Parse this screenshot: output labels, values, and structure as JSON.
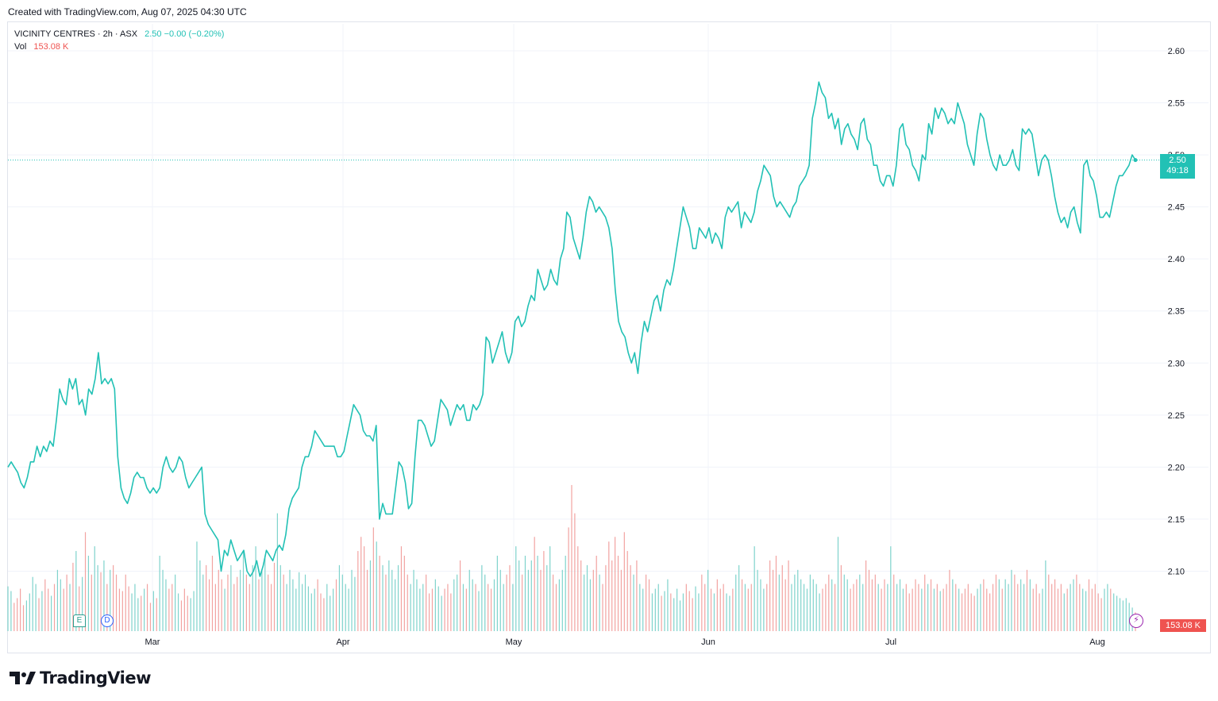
{
  "header": {
    "created": "Created with TradingView.com, Aug 07, 2025 04:30 UTC"
  },
  "legend": {
    "symbol": "VICINITY CENTRES · 2h · ASX",
    "price_text": "2.50 −0.00 (−0.20%)",
    "vol_label": "Vol",
    "vol_value": "153.08 K"
  },
  "price_tag": {
    "price": "2.50",
    "countdown": "49:18"
  },
  "vol_tag": "153.08 K",
  "markers": {
    "earnings": "E",
    "dividend": "D",
    "bolt": "⚡"
  },
  "brand": {
    "name": "TradingView"
  },
  "colors": {
    "line": "#22c1b5",
    "vol_up": "#7fd3cc",
    "vol_down": "#f2a3a1",
    "grid": "#f0f3fa"
  },
  "chart_data": {
    "type": "line",
    "ylim": [
      2.05,
      2.625
    ],
    "y_ticks": [
      "2.60",
      "2.55",
      "2.50",
      "2.45",
      "2.40",
      "2.35",
      "2.30",
      "2.25",
      "2.20",
      "2.15",
      "2.10"
    ],
    "x_ticks": [
      "Mar",
      "Apr",
      "May",
      "Jun",
      "Jul",
      "Aug"
    ],
    "current_price": 2.495,
    "series": [
      {
        "values": [
          2.2,
          2.205,
          2.2,
          2.195,
          2.185,
          2.18,
          2.19,
          2.205,
          2.205,
          2.22,
          2.21,
          2.22,
          2.215,
          2.225,
          2.22,
          2.245,
          2.275,
          2.265,
          2.26,
          2.285,
          2.275,
          2.285,
          2.26,
          2.265,
          2.25,
          2.275,
          2.27,
          2.285,
          2.31,
          2.28,
          2.285,
          2.28,
          2.285,
          2.275,
          2.21,
          2.18,
          2.17,
          2.165,
          2.175,
          2.19,
          2.195,
          2.19,
          2.19,
          2.18,
          2.175,
          2.18,
          2.175,
          2.18,
          2.2,
          2.21,
          2.2,
          2.195,
          2.2,
          2.21,
          2.205,
          2.19,
          2.18,
          2.185,
          2.19,
          2.195,
          2.2,
          2.155,
          2.145,
          2.14,
          2.135,
          2.13,
          2.1,
          2.12,
          2.115,
          2.13,
          2.12,
          2.11,
          2.115,
          2.12,
          2.1,
          2.095,
          2.1,
          2.11,
          2.095,
          2.105,
          2.12,
          2.115,
          2.11,
          2.12,
          2.125,
          2.12,
          2.135,
          2.16,
          2.17,
          2.175,
          2.18,
          2.2,
          2.21,
          2.21,
          2.22,
          2.235,
          2.23,
          2.225,
          2.22,
          2.22,
          2.22,
          2.22,
          2.21,
          2.21,
          2.215,
          2.23,
          2.245,
          2.26,
          2.255,
          2.25,
          2.235,
          2.23,
          2.23,
          2.225,
          2.24,
          2.15,
          2.165,
          2.155,
          2.155,
          2.155,
          2.18,
          2.205,
          2.2,
          2.185,
          2.16,
          2.165,
          2.21,
          2.245,
          2.245,
          2.24,
          2.23,
          2.22,
          2.225,
          2.245,
          2.265,
          2.26,
          2.255,
          2.24,
          2.25,
          2.26,
          2.255,
          2.26,
          2.245,
          2.245,
          2.26,
          2.255,
          2.26,
          2.27,
          2.325,
          2.32,
          2.3,
          2.31,
          2.32,
          2.33,
          2.31,
          2.3,
          2.31,
          2.34,
          2.345,
          2.335,
          2.34,
          2.355,
          2.365,
          2.36,
          2.39,
          2.38,
          2.37,
          2.375,
          2.39,
          2.38,
          2.375,
          2.4,
          2.41,
          2.445,
          2.44,
          2.42,
          2.41,
          2.4,
          2.42,
          2.445,
          2.46,
          2.455,
          2.445,
          2.45,
          2.445,
          2.44,
          2.43,
          2.41,
          2.37,
          2.34,
          2.33,
          2.325,
          2.31,
          2.3,
          2.31,
          2.29,
          2.32,
          2.34,
          2.33,
          2.345,
          2.36,
          2.365,
          2.35,
          2.37,
          2.38,
          2.375,
          2.39,
          2.41,
          2.43,
          2.45,
          2.44,
          2.43,
          2.41,
          2.41,
          2.43,
          2.425,
          2.42,
          2.43,
          2.415,
          2.425,
          2.42,
          2.41,
          2.44,
          2.45,
          2.445,
          2.45,
          2.455,
          2.43,
          2.445,
          2.44,
          2.435,
          2.445,
          2.465,
          2.475,
          2.49,
          2.485,
          2.48,
          2.46,
          2.45,
          2.455,
          2.45,
          2.445,
          2.44,
          2.45,
          2.455,
          2.47,
          2.475,
          2.48,
          2.49,
          2.535,
          2.55,
          2.57,
          2.56,
          2.555,
          2.535,
          2.54,
          2.525,
          2.535,
          2.51,
          2.525,
          2.53,
          2.52,
          2.515,
          2.505,
          2.53,
          2.535,
          2.515,
          2.51,
          2.49,
          2.49,
          2.475,
          2.47,
          2.48,
          2.48,
          2.47,
          2.49,
          2.525,
          2.53,
          2.51,
          2.505,
          2.49,
          2.485,
          2.475,
          2.5,
          2.495,
          2.53,
          2.52,
          2.545,
          2.535,
          2.545,
          2.54,
          2.53,
          2.535,
          2.53,
          2.55,
          2.54,
          2.53,
          2.51,
          2.5,
          2.49,
          2.52,
          2.54,
          2.535,
          2.515,
          2.5,
          2.49,
          2.485,
          2.5,
          2.49,
          2.49,
          2.495,
          2.505,
          2.49,
          2.485,
          2.525,
          2.52,
          2.525,
          2.52,
          2.5,
          2.48,
          2.495,
          2.5,
          2.495,
          2.48,
          2.46,
          2.445,
          2.435,
          2.44,
          2.43,
          2.445,
          2.45,
          2.435,
          2.425,
          2.49,
          2.495,
          2.48,
          2.475,
          2.46,
          2.44,
          2.44,
          2.445,
          2.44,
          2.455,
          2.47,
          2.48,
          2.48,
          2.485,
          2.49,
          2.5,
          2.495
        ]
      }
    ],
    "volume": [
      0.95,
      0.85,
      0.6,
      0.7,
      0.9,
      0.55,
      0.65,
      0.8,
      1.15,
      1.0,
      0.7,
      0.85,
      1.1,
      0.9,
      0.75,
      1.0,
      1.3,
      1.1,
      0.9,
      1.2,
      1.0,
      1.45,
      1.7,
      0.95,
      1.15,
      2.1,
      1.6,
      1.2,
      1.8,
      1.4,
      1.25,
      1.5,
      1.0,
      1.3,
      1.4,
      1.2,
      0.9,
      0.85,
      1.2,
      0.95,
      0.8,
      1.0,
      0.7,
      0.75,
      0.9,
      1.0,
      0.6,
      0.85,
      0.7,
      1.6,
      1.3,
      1.1,
      0.9,
      1.0,
      1.2,
      0.8,
      0.65,
      0.9,
      0.75,
      0.7,
      0.85,
      1.9,
      1.5,
      1.2,
      1.4,
      1.1,
      1.6,
      1.0,
      1.3,
      1.1,
      0.9,
      1.2,
      1.4,
      1.0,
      1.15,
      1.3,
      1.7,
      1.2,
      1.0,
      1.4,
      1.8,
      1.1,
      1.3,
      1.6,
      1.2,
      1.0,
      1.45,
      2.5,
      1.4,
      1.2,
      1.0,
      1.3,
      1.1,
      0.9,
      1.25,
      1.0,
      1.2,
      0.95,
      0.8,
      0.9,
      1.1,
      0.8,
      0.7,
      1.0,
      0.75,
      0.9,
      1.1,
      1.4,
      1.2,
      1.0,
      0.9,
      1.3,
      1.15,
      1.7,
      2.0,
      1.8,
      1.3,
      1.5,
      2.2,
      1.9,
      1.6,
      1.4,
      1.2,
      1.5,
      1.3,
      1.1,
      1.4,
      1.8,
      1.6,
      1.2,
      1.0,
      1.3,
      1.1,
      0.9,
      1.0,
      1.2,
      0.8,
      0.9,
      1.1,
      0.95,
      0.75,
      0.9,
      1.0,
      0.8,
      1.1,
      1.2,
      1.5,
      1.0,
      0.9,
      1.3,
      1.1,
      1.0,
      0.85,
      1.4,
      1.2,
      1.0,
      0.9,
      1.1,
      1.6,
      1.3,
      1.0,
      1.2,
      1.4,
      1.0,
      1.8,
      1.5,
      1.2,
      1.6,
      1.3,
      1.5,
      2.0,
      1.6,
      1.3,
      1.7,
      1.4,
      1.8,
      1.2,
      1.0,
      1.1,
      1.3,
      1.6,
      2.2,
      3.1,
      2.5,
      1.8,
      1.5,
      1.2,
      1.4,
      1.1,
      1.3,
      1.6,
      1.2,
      1.0,
      1.4,
      1.9,
      1.5,
      2.0,
      1.6,
      1.3,
      2.1,
      1.7,
      1.4,
      1.2,
      1.5,
      1.0,
      0.9,
      1.2,
      1.1,
      0.8,
      0.9,
      1.0,
      0.75,
      0.85,
      1.1,
      0.8,
      0.7,
      0.9,
      0.65,
      0.8,
      1.0,
      0.85,
      0.7,
      0.95,
      0.8,
      1.2,
      1.0,
      1.3,
      0.9,
      0.8,
      1.1,
      0.9,
      1.0,
      0.8,
      0.75,
      0.9,
      1.2,
      1.4,
      1.1,
      1.0,
      0.9,
      1.0,
      1.8,
      1.3,
      1.1,
      0.9,
      1.0,
      1.5,
      1.3,
      1.6,
      1.2,
      1.4,
      1.1,
      1.5,
      1.0,
      1.2,
      1.3,
      1.1,
      1.0,
      0.9,
      1.2,
      1.1,
      1.0,
      0.8,
      0.9,
      1.0,
      1.2,
      1.1,
      1.0,
      2.0,
      1.4,
      1.2,
      1.1,
      0.9,
      1.0,
      1.1,
      1.2,
      1.0,
      1.5,
      1.3,
      1.1,
      1.2,
      1.0,
      0.9,
      1.1,
      1.0,
      1.8,
      1.2,
      1.0,
      1.1,
      0.9,
      1.0,
      0.8,
      0.9,
      1.1,
      1.0,
      0.9,
      1.2,
      1.0,
      1.1,
      0.9,
      1.0,
      0.85,
      0.9,
      1.0,
      1.3,
      1.1,
      1.0,
      0.9,
      0.8,
      0.9,
      1.0,
      0.8,
      0.75,
      0.9,
      1.0,
      1.1,
      0.9,
      0.8,
      1.0,
      1.2,
      1.1,
      0.9,
      1.1,
      1.0,
      1.3,
      1.2,
      1.0,
      1.1,
      1.0,
      1.3,
      1.1,
      0.9,
      1.0,
      0.8,
      0.9,
      1.5,
      1.2,
      1.0,
      1.1,
      0.9,
      1.0,
      0.8,
      0.9,
      1.0,
      1.1,
      1.2,
      1.0,
      0.9,
      0.85,
      1.1,
      0.9,
      1.0,
      0.8,
      0.7,
      0.9,
      1.0,
      0.9,
      0.8,
      0.75,
      0.7,
      0.65,
      0.7,
      0.6,
      0.5,
      0.4
    ]
  }
}
